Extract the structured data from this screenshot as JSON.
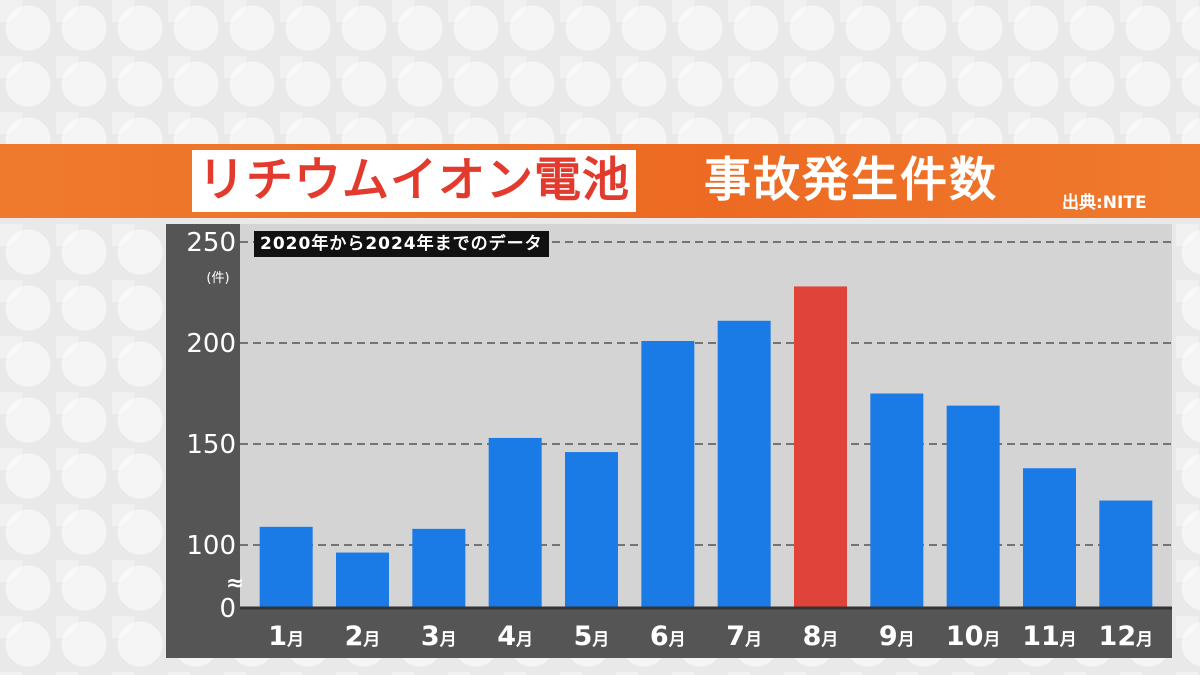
{
  "title": {
    "main": "リチウムイオン電池",
    "sub": "事故発生件数",
    "source": "出典:NITE"
  },
  "subtitle": "2020年から2024年までのデータ",
  "chart_data": {
    "type": "bar",
    "categories": [
      "1月",
      "2月",
      "3月",
      "4月",
      "5月",
      "6月",
      "7月",
      "8月",
      "9月",
      "10月",
      "11月",
      "12月"
    ],
    "values": [
      109,
      88,
      108,
      153,
      146,
      201,
      211,
      228,
      175,
      169,
      138,
      122
    ],
    "highlight_index": 7,
    "ylim": [
      0,
      250
    ],
    "axis_break": true,
    "y_ticks": [
      "250",
      "200",
      "150",
      "100",
      "0"
    ],
    "y_unit": "(件)",
    "axis_break_symbol": "≈",
    "grid": "horizontal dashed",
    "colors": {
      "bar": "#1a7ae6",
      "highlight": "#e0433a"
    }
  }
}
